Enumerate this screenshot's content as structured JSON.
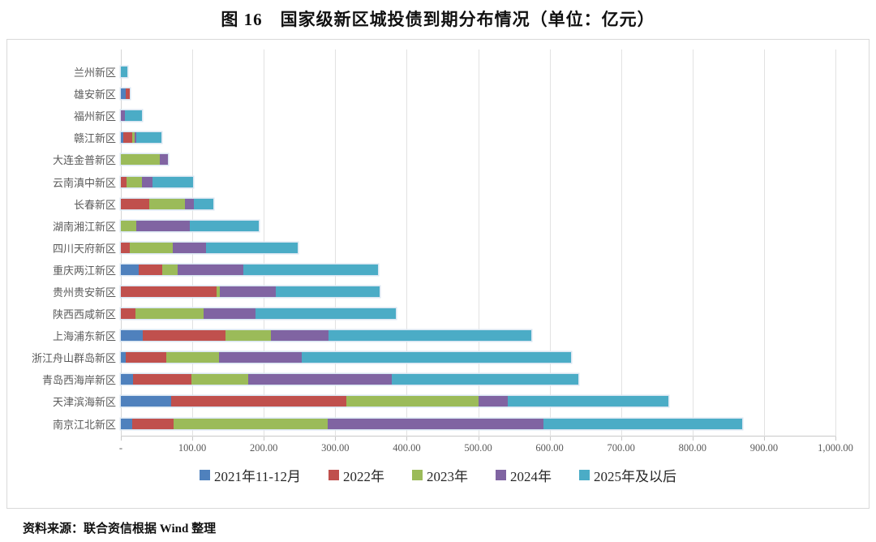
{
  "page": {
    "title": "图 16　国家级新区城投债到期分布情况（单位：亿元）",
    "source_note": "资料来源：联合资信根据 Wind 整理"
  },
  "chart_data": {
    "type": "bar",
    "orientation": "horizontal",
    "stacked": true,
    "unit": "亿元",
    "title": "图 16　国家级新区城投债到期分布情况（单位：亿元）",
    "grid": true,
    "legend_position": "bottom",
    "xlim": [
      0,
      1000
    ],
    "x_tick_step": 100,
    "x_tick_labels": [
      "-",
      "100.00",
      "200.00",
      "300.00",
      "400.00",
      "500.00",
      "600.00",
      "700.00",
      "800.00",
      "900.00",
      "1,000.00"
    ],
    "categories": [
      "兰州新区",
      "雄安新区",
      "福州新区",
      "赣江新区",
      "大连金普新区",
      "云南滇中新区",
      "长春新区",
      "湖南湘江新区",
      "四川天府新区",
      "重庆两江新区",
      "贵州贵安新区",
      "陕西西咸新区",
      "上海浦东新区",
      "浙江舟山群岛新区",
      "青岛西海岸新区",
      "天津滨海新区",
      "南京江北新区"
    ],
    "series": [
      {
        "name": "2021年11-12月",
        "color": "#4F81BD",
        "values": [
          0,
          7,
          0,
          3,
          0,
          0,
          0,
          0,
          0,
          25,
          0,
          0,
          31,
          7,
          17,
          70,
          16
        ]
      },
      {
        "name": "2022年",
        "color": "#C0504D",
        "values": [
          0,
          5,
          0,
          13,
          0,
          8,
          40,
          0,
          13,
          33,
          134,
          20,
          115,
          57,
          82,
          246,
          58
        ]
      },
      {
        "name": "2023年",
        "color": "#9BBB59",
        "values": [
          0,
          0,
          0,
          3,
          55,
          22,
          50,
          21,
          60,
          22,
          5,
          96,
          64,
          73,
          79,
          185,
          216
        ]
      },
      {
        "name": "2024年",
        "color": "#8064A2",
        "values": [
          0,
          0,
          6,
          3,
          11,
          14,
          12,
          75,
          46,
          91,
          78,
          72,
          81,
          116,
          201,
          40,
          301
        ]
      },
      {
        "name": "2025年及以后",
        "color": "#4BACC6",
        "values": [
          9,
          0,
          23,
          35,
          0,
          57,
          27,
          97,
          128,
          189,
          145,
          197,
          283,
          377,
          261,
          225,
          278
        ]
      }
    ]
  }
}
